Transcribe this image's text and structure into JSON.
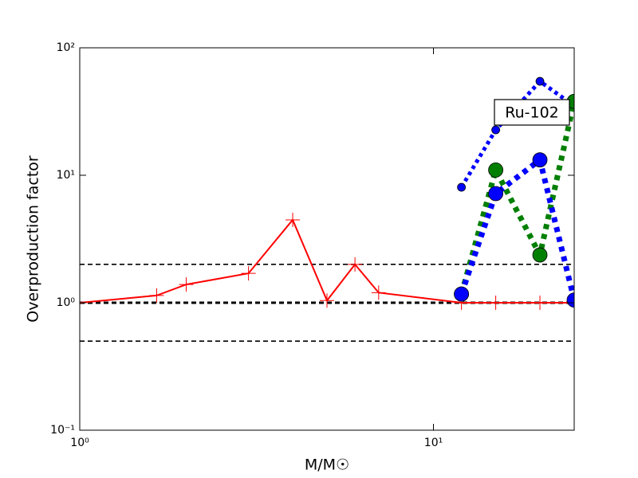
{
  "chart_data": {
    "type": "line",
    "xlabel": "M/M☉",
    "ylabel": "Overproduction factor",
    "annotation": "Ru-102",
    "xscale": "log",
    "yscale": "log",
    "xlim": [
      1,
      25
    ],
    "ylim": [
      0.1,
      100
    ],
    "xticks": [
      {
        "value": 1,
        "label": "10⁰"
      },
      {
        "value": 10,
        "label": "10¹"
      }
    ],
    "yticks": [
      {
        "value": 0.1,
        "label": "10⁻¹"
      },
      {
        "value": 1,
        "label": "10⁰"
      },
      {
        "value": 10,
        "label": "10¹"
      },
      {
        "value": 100,
        "label": "10²"
      }
    ],
    "hlines": [
      0.5,
      1,
      2
    ],
    "series": [
      {
        "color": "#ff0000",
        "style": "solid",
        "width": 2,
        "marker": "plus",
        "markersize": 9,
        "x": [
          1,
          1.65,
          2,
          3,
          4,
          5,
          6,
          7,
          12,
          15,
          20,
          25
        ],
        "values": [
          1.0,
          1.14,
          1.39,
          1.7,
          4.47,
          1.04,
          2.0,
          1.2,
          1.0,
          1.0,
          1.0,
          1.0
        ]
      },
      {
        "color": "#0000ff",
        "style": "dotted",
        "width": 5,
        "marker": "circle",
        "markersize": 5,
        "x": [
          12,
          15,
          20,
          25
        ],
        "values": [
          8.05,
          22.7,
          54.6,
          35
        ]
      },
      {
        "color": "#007f00",
        "style": "dotted",
        "width": 7,
        "marker": "circle",
        "markersize": 9,
        "x": [
          12,
          15,
          20,
          25
        ],
        "values": [
          1.17,
          11,
          2.37,
          38
        ]
      },
      {
        "color": "#0000ff",
        "style": "dotted",
        "width": 7,
        "marker": "circle",
        "markersize": 9,
        "x": [
          12,
          15,
          20,
          25
        ],
        "values": [
          1.17,
          7.18,
          13.2,
          1.05
        ]
      }
    ]
  }
}
